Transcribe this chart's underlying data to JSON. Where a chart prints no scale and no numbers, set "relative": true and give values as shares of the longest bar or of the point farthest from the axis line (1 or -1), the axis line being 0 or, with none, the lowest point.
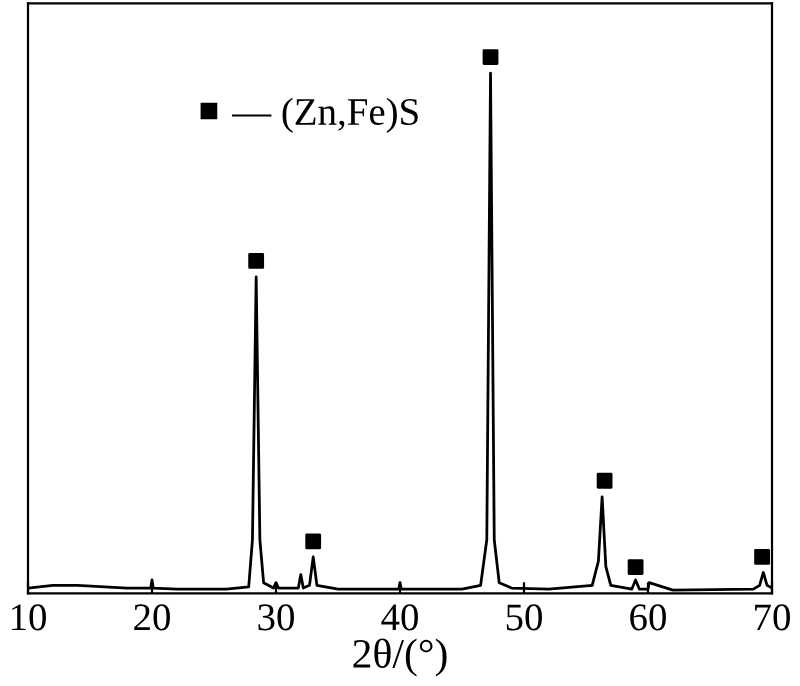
{
  "chart_data": {
    "type": "line",
    "relative": true,
    "xlabel": "2θ/(°)",
    "xlim": [
      10,
      70
    ],
    "xticks": [
      10,
      20,
      30,
      40,
      50,
      60,
      70
    ],
    "tick_labels": "x",
    "grid": false,
    "legend": "top left",
    "series": [
      {
        "color": "#000000",
        "marker": "none",
        "line_style": "solid",
        "x": [
          10,
          12,
          14,
          18,
          19.9,
          20,
          20.1,
          22,
          26,
          27.8,
          28.1,
          28.4,
          28.7,
          29,
          29.8,
          30,
          30.2,
          31.8,
          32,
          32.2,
          32.7,
          33.0,
          33.3,
          35,
          39.9,
          40,
          40.1,
          45,
          46.5,
          47,
          47.3,
          47.6,
          48,
          49,
          52,
          55.5,
          56,
          56.3,
          56.6,
          57,
          58.7,
          59,
          59.3,
          60,
          60.1,
          62,
          68.5,
          69,
          69.3,
          69.6,
          70
        ],
        "values": [
          0.01,
          0.015,
          0.015,
          0.01,
          0.01,
          0.025,
          0.01,
          0.008,
          0.008,
          0.012,
          0.1,
          0.59,
          0.1,
          0.02,
          0.01,
          0.02,
          0.01,
          0.01,
          0.035,
          0.01,
          0.015,
          0.068,
          0.015,
          0.008,
          0.008,
          0.02,
          0.008,
          0.008,
          0.015,
          0.1,
          0.97,
          0.1,
          0.02,
          0.01,
          0.008,
          0.015,
          0.06,
          0.18,
          0.05,
          0.015,
          0.008,
          0.025,
          0.008,
          0.008,
          0.02,
          0.006,
          0.008,
          0.015,
          0.039,
          0.015,
          0.01
        ]
      },
      {
        "name": "— (Zn,Fe)S",
        "type": "scatter",
        "color": "#000000",
        "marker": "square",
        "x": [
          28.4,
          33.0,
          47.3,
          56.5,
          59.0,
          69.2
        ],
        "values": [
          0.62,
          0.097,
          1,
          0.21,
          0.049,
          0.068
        ]
      }
    ]
  }
}
